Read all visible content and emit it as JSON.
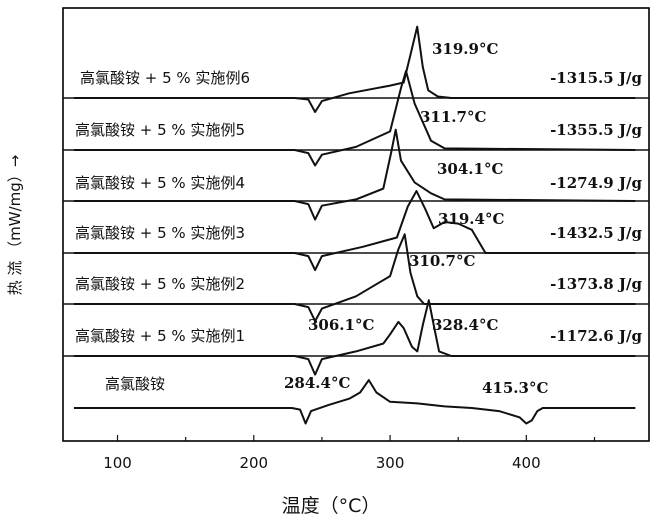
{
  "chart_data": {
    "type": "line",
    "xlabel": "温度（°C）",
    "ylabel": "热 流 （mW/mg）→",
    "xlim": [
      60,
      490
    ],
    "xticks": [
      100,
      200,
      300,
      400
    ],
    "series": [
      {
        "name": "高氯酸铵 + 5 % 实施例6",
        "enthalpy": "-1315.5 J/g",
        "peak_labels": [
          {
            "text": "319.9°C",
            "x": 319.9
          }
        ],
        "endo": 245,
        "points": [
          [
            68,
            0
          ],
          [
            230,
            0
          ],
          [
            240,
            -1
          ],
          [
            245,
            -9
          ],
          [
            250,
            -2
          ],
          [
            270,
            3
          ],
          [
            300,
            8
          ],
          [
            310,
            10
          ],
          [
            315,
            28
          ],
          [
            319.9,
            46
          ],
          [
            324,
            20
          ],
          [
            328,
            5
          ],
          [
            335,
            1
          ],
          [
            345,
            0
          ],
          [
            480,
            0
          ]
        ]
      },
      {
        "name": "高氯酸铵 + 5 % 实施例5",
        "enthalpy": "-1355.5 J/g",
        "peak_labels": [
          {
            "text": "311.7°C",
            "x": 311.7
          }
        ],
        "endo": 245,
        "points": [
          [
            68,
            0
          ],
          [
            230,
            0
          ],
          [
            240,
            -2
          ],
          [
            245,
            -10
          ],
          [
            250,
            -3
          ],
          [
            275,
            2
          ],
          [
            300,
            12
          ],
          [
            308,
            40
          ],
          [
            311.7,
            51
          ],
          [
            318,
            30
          ],
          [
            330,
            6
          ],
          [
            340,
            1
          ],
          [
            480,
            0
          ]
        ]
      },
      {
        "name": "高氯酸铵 + 5 % 实施例4",
        "enthalpy": "-1274.9 J/g",
        "peak_labels": [
          {
            "text": "304.1°C",
            "x": 304.1
          }
        ],
        "endo": 245,
        "points": [
          [
            68,
            0
          ],
          [
            230,
            0
          ],
          [
            240,
            -2
          ],
          [
            245,
            -12
          ],
          [
            250,
            -3
          ],
          [
            275,
            1
          ],
          [
            295,
            8
          ],
          [
            301,
            32
          ],
          [
            304.1,
            46
          ],
          [
            308,
            26
          ],
          [
            318,
            12
          ],
          [
            330,
            5
          ],
          [
            340,
            1
          ],
          [
            480,
            0
          ]
        ]
      },
      {
        "name": "高氯酸铵 + 5 % 实施例3",
        "enthalpy": "-1432.5 J/g",
        "peak_labels": [
          {
            "text": "319.4°C",
            "x": 319.4
          }
        ],
        "endo": 245,
        "points": [
          [
            68,
            0
          ],
          [
            230,
            0
          ],
          [
            240,
            -2
          ],
          [
            245,
            -11
          ],
          [
            250,
            -2
          ],
          [
            280,
            4
          ],
          [
            305,
            10
          ],
          [
            313,
            30
          ],
          [
            319.4,
            40
          ],
          [
            326,
            28
          ],
          [
            332,
            16
          ],
          [
            340,
            20
          ],
          [
            350,
            19
          ],
          [
            360,
            15
          ],
          [
            366,
            6
          ],
          [
            370,
            0
          ],
          [
            480,
            0
          ]
        ]
      },
      {
        "name": "高氯酸铵 + 5 % 实施例2",
        "enthalpy": "-1373.8 J/g",
        "peak_labels": [
          {
            "text": "310.7°C",
            "x": 310.7
          }
        ],
        "endo": 245,
        "points": [
          [
            68,
            0
          ],
          [
            230,
            0
          ],
          [
            240,
            -2
          ],
          [
            245,
            -11
          ],
          [
            250,
            -3
          ],
          [
            275,
            5
          ],
          [
            300,
            18
          ],
          [
            306,
            35
          ],
          [
            310.7,
            45
          ],
          [
            315,
            20
          ],
          [
            320,
            5
          ],
          [
            325,
            0
          ],
          [
            480,
            0
          ]
        ]
      },
      {
        "name": "高氯酸铵 + 5 % 实施例1",
        "enthalpy": "-1172.6 J/g",
        "peak_labels": [
          {
            "text": "306.1°C",
            "x": 306.1
          },
          {
            "text": "328.4°C",
            "x": 328.4
          }
        ],
        "endo": 245,
        "points": [
          [
            68,
            0
          ],
          [
            230,
            0
          ],
          [
            240,
            -2
          ],
          [
            245,
            -12
          ],
          [
            250,
            -2
          ],
          [
            275,
            3
          ],
          [
            295,
            8
          ],
          [
            300,
            14
          ],
          [
            306.1,
            22
          ],
          [
            310,
            18
          ],
          [
            316,
            6
          ],
          [
            320,
            3
          ],
          [
            324,
            20
          ],
          [
            328.4,
            36
          ],
          [
            332,
            20
          ],
          [
            336,
            3
          ],
          [
            345,
            0
          ],
          [
            480,
            0
          ]
        ]
      },
      {
        "name": "高氯酸铵",
        "enthalpy": "",
        "peak_labels": [
          {
            "text": "284.4°C",
            "x": 284.4
          },
          {
            "text": "415.3°C",
            "x": 415.3
          }
        ],
        "endo": 238,
        "points": [
          [
            68,
            0
          ],
          [
            228,
            0
          ],
          [
            234,
            -1
          ],
          [
            238,
            -10
          ],
          [
            242,
            -2
          ],
          [
            255,
            2
          ],
          [
            270,
            6
          ],
          [
            278,
            10
          ],
          [
            284.4,
            18
          ],
          [
            290,
            10
          ],
          [
            300,
            4
          ],
          [
            320,
            3
          ],
          [
            340,
            1
          ],
          [
            360,
            0
          ],
          [
            380,
            -2
          ],
          [
            395,
            -6
          ],
          [
            400,
            -10
          ],
          [
            404,
            -8
          ],
          [
            408,
            -2
          ],
          [
            412,
            0
          ],
          [
            480,
            0
          ]
        ]
      }
    ]
  }
}
